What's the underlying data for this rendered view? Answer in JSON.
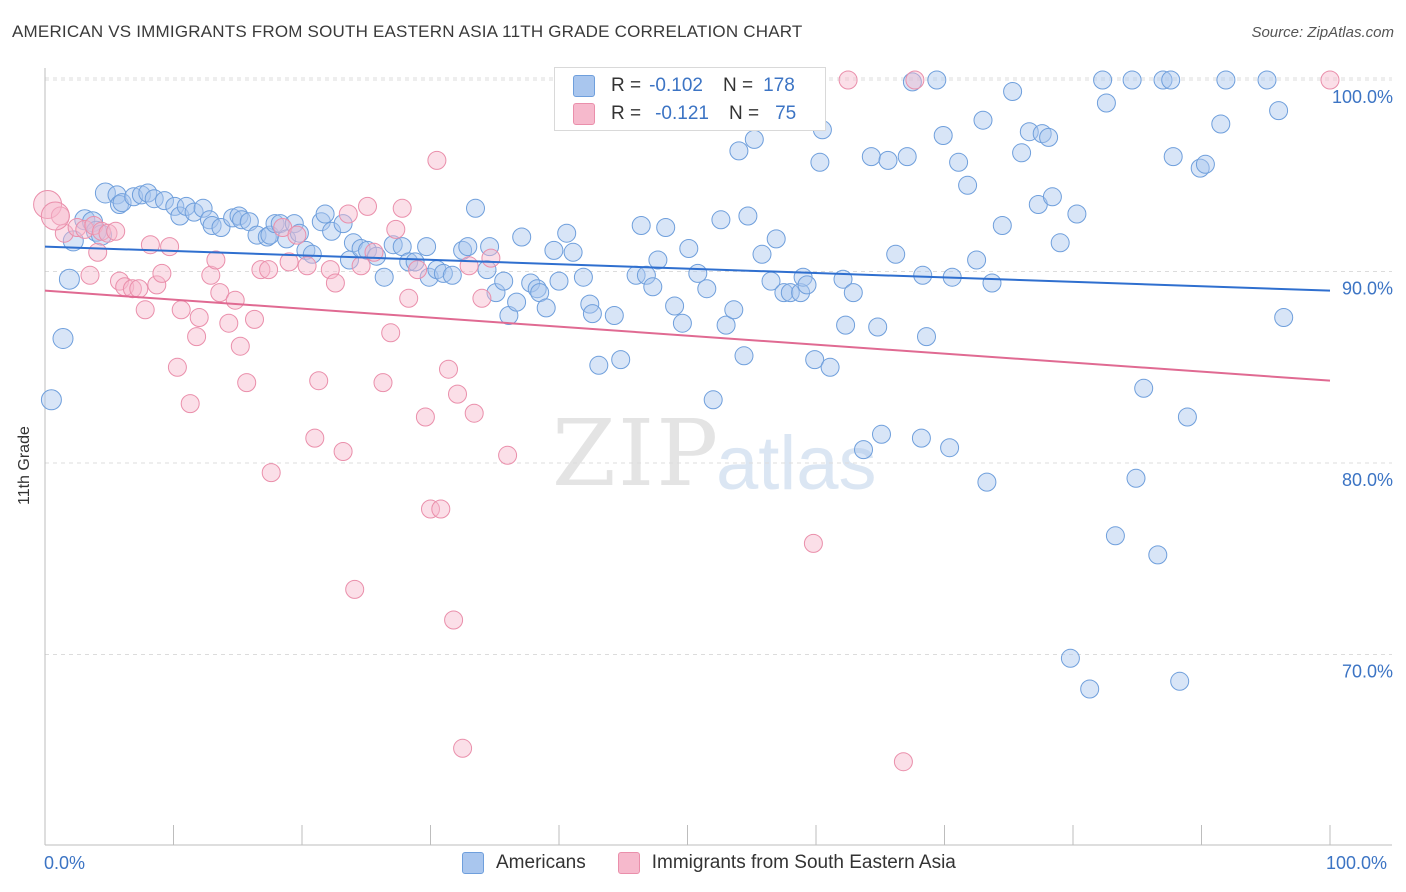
{
  "title": "AMERICAN VS IMMIGRANTS FROM SOUTH EASTERN ASIA 11TH GRADE CORRELATION CHART",
  "source": "Source: ZipAtlas.com",
  "watermark": {
    "zip": "ZIP",
    "atlas": "atlas"
  },
  "legend_top": {
    "rows": [
      {
        "r_label": "R =",
        "r_value": "-0.102",
        "n_label": "N =",
        "n_value": "178",
        "color": "#a9c6ee"
      },
      {
        "r_label": "R =",
        "r_value": "-0.121",
        "n_label": "N =",
        "n_value": "75",
        "color": "#f6b9cc"
      }
    ]
  },
  "chart_data": {
    "type": "scatter",
    "title": "AMERICAN VS IMMIGRANTS FROM SOUTH EASTERN ASIA 11TH GRADE CORRELATION CHART",
    "xlabel": "",
    "ylabel": "11th Grade",
    "xlim": [
      0,
      100
    ],
    "ylim": [
      60,
      100
    ],
    "x_tick_labels": {
      "left": "0.0%",
      "right": "100.0%"
    },
    "y_ticks": [
      {
        "value": 100,
        "label": "100.0%"
      },
      {
        "value": 90,
        "label": "90.0%"
      },
      {
        "value": 80,
        "label": "80.0%"
      },
      {
        "value": 70,
        "label": "70.0%"
      }
    ],
    "grid": true,
    "legend_position": "bottom",
    "series": [
      {
        "name": "Americans",
        "color": "#a9c6ee",
        "stroke": "#6f9fdc",
        "trend": {
          "x": [
            0,
            100
          ],
          "y": [
            91.3,
            89.0
          ],
          "color": "#2f6fcf"
        },
        "points": [
          [
            0.5,
            83.3
          ],
          [
            1.4,
            86.5
          ],
          [
            1.9,
            89.6
          ],
          [
            2.2,
            91.6
          ],
          [
            3.1,
            92.7
          ],
          [
            3.7,
            92.6
          ],
          [
            4.0,
            92.1
          ],
          [
            4.4,
            91.9
          ],
          [
            4.7,
            94.1
          ],
          [
            5.6,
            94.0
          ],
          [
            5.8,
            93.5
          ],
          [
            6.0,
            93.6
          ],
          [
            6.9,
            93.9
          ],
          [
            7.5,
            94.0
          ],
          [
            8.0,
            94.1
          ],
          [
            8.5,
            93.8
          ],
          [
            9.3,
            93.7
          ],
          [
            10.1,
            93.4
          ],
          [
            10.5,
            92.9
          ],
          [
            11.0,
            93.4
          ],
          [
            11.6,
            93.1
          ],
          [
            12.3,
            93.3
          ],
          [
            12.8,
            92.7
          ],
          [
            13.0,
            92.4
          ],
          [
            13.7,
            92.3
          ],
          [
            14.6,
            92.8
          ],
          [
            15.1,
            92.9
          ],
          [
            15.3,
            92.7
          ],
          [
            15.9,
            92.6
          ],
          [
            16.5,
            91.9
          ],
          [
            17.3,
            91.8
          ],
          [
            17.5,
            91.9
          ],
          [
            17.9,
            92.5
          ],
          [
            18.3,
            92.5
          ],
          [
            18.8,
            91.7
          ],
          [
            19.4,
            92.5
          ],
          [
            19.8,
            92.0
          ],
          [
            20.3,
            91.1
          ],
          [
            20.8,
            90.9
          ],
          [
            21.5,
            92.6
          ],
          [
            21.8,
            93.0
          ],
          [
            22.3,
            92.1
          ],
          [
            23.2,
            92.5
          ],
          [
            23.7,
            90.6
          ],
          [
            24.0,
            91.5
          ],
          [
            24.6,
            91.2
          ],
          [
            25.1,
            91.1
          ],
          [
            25.8,
            90.8
          ],
          [
            26.4,
            89.7
          ],
          [
            27.1,
            91.4
          ],
          [
            27.8,
            91.3
          ],
          [
            28.3,
            90.5
          ],
          [
            28.8,
            90.5
          ],
          [
            29.7,
            91.3
          ],
          [
            29.9,
            89.7
          ],
          [
            30.5,
            90.1
          ],
          [
            31.0,
            89.9
          ],
          [
            31.7,
            89.8
          ],
          [
            32.5,
            91.1
          ],
          [
            32.9,
            91.3
          ],
          [
            33.5,
            93.3
          ],
          [
            34.4,
            90.1
          ],
          [
            34.6,
            91.3
          ],
          [
            35.1,
            88.9
          ],
          [
            35.7,
            89.5
          ],
          [
            36.1,
            87.7
          ],
          [
            36.7,
            88.4
          ],
          [
            37.1,
            91.8
          ],
          [
            37.8,
            89.4
          ],
          [
            38.3,
            89.1
          ],
          [
            38.5,
            88.9
          ],
          [
            39.0,
            88.1
          ],
          [
            39.6,
            91.1
          ],
          [
            40.0,
            89.5
          ],
          [
            40.6,
            92.0
          ],
          [
            41.1,
            91.0
          ],
          [
            41.9,
            89.7
          ],
          [
            42.4,
            88.3
          ],
          [
            42.6,
            87.8
          ],
          [
            43.1,
            85.1
          ],
          [
            44.3,
            87.7
          ],
          [
            44.8,
            85.4
          ],
          [
            46.0,
            89.8
          ],
          [
            46.4,
            92.4
          ],
          [
            46.8,
            89.8
          ],
          [
            47.3,
            89.2
          ],
          [
            47.7,
            90.6
          ],
          [
            48.3,
            92.3
          ],
          [
            49.0,
            88.2
          ],
          [
            49.6,
            87.3
          ],
          [
            50.1,
            91.2
          ],
          [
            50.8,
            89.9
          ],
          [
            51.5,
            89.1
          ],
          [
            52.0,
            83.3
          ],
          [
            52.6,
            92.7
          ],
          [
            53.0,
            87.2
          ],
          [
            53.6,
            88.0
          ],
          [
            54.0,
            96.3
          ],
          [
            54.4,
            85.6
          ],
          [
            54.7,
            92.9
          ],
          [
            55.2,
            96.9
          ],
          [
            55.8,
            90.9
          ],
          [
            56.5,
            89.5
          ],
          [
            56.9,
            91.7
          ],
          [
            57.5,
            88.9
          ],
          [
            58.0,
            88.9
          ],
          [
            58.8,
            88.9
          ],
          [
            59.0,
            89.7
          ],
          [
            59.3,
            89.3
          ],
          [
            59.9,
            85.4
          ],
          [
            60.3,
            95.7
          ],
          [
            60.5,
            97.4
          ],
          [
            61.1,
            85.0
          ],
          [
            62.1,
            89.6
          ],
          [
            62.3,
            87.2
          ],
          [
            62.9,
            88.9
          ],
          [
            63.7,
            80.7
          ],
          [
            64.3,
            96.0
          ],
          [
            64.8,
            87.1
          ],
          [
            65.1,
            81.5
          ],
          [
            65.6,
            95.8
          ],
          [
            66.2,
            90.9
          ],
          [
            67.1,
            96.0
          ],
          [
            67.5,
            99.9
          ],
          [
            68.2,
            81.3
          ],
          [
            68.3,
            89.8
          ],
          [
            68.6,
            86.6
          ],
          [
            69.4,
            100.0
          ],
          [
            69.9,
            97.1
          ],
          [
            70.4,
            80.8
          ],
          [
            70.6,
            89.7
          ],
          [
            71.1,
            95.7
          ],
          [
            71.8,
            94.5
          ],
          [
            72.5,
            90.6
          ],
          [
            73.0,
            97.9
          ],
          [
            73.3,
            79.0
          ],
          [
            73.7,
            89.4
          ],
          [
            74.5,
            92.4
          ],
          [
            75.3,
            99.4
          ],
          [
            76.0,
            96.2
          ],
          [
            76.6,
            97.3
          ],
          [
            77.3,
            93.5
          ],
          [
            77.6,
            97.2
          ],
          [
            78.1,
            97.0
          ],
          [
            78.4,
            93.9
          ],
          [
            79.0,
            91.5
          ],
          [
            79.8,
            69.8
          ],
          [
            80.3,
            93.0
          ],
          [
            81.3,
            68.2
          ],
          [
            82.3,
            100.0
          ],
          [
            82.6,
            98.8
          ],
          [
            83.3,
            76.2
          ],
          [
            84.6,
            100.0
          ],
          [
            84.9,
            79.2
          ],
          [
            85.5,
            83.9
          ],
          [
            86.6,
            75.2
          ],
          [
            87.0,
            100.0
          ],
          [
            87.6,
            100.0
          ],
          [
            87.8,
            96.0
          ],
          [
            88.3,
            68.6
          ],
          [
            88.9,
            82.4
          ],
          [
            89.9,
            95.4
          ],
          [
            90.3,
            95.6
          ],
          [
            91.5,
            97.7
          ],
          [
            91.9,
            100.0
          ],
          [
            95.1,
            100.0
          ],
          [
            96.0,
            98.4
          ],
          [
            96.4,
            87.6
          ]
        ]
      },
      {
        "name": "Immigrants from South Eastern Asia",
        "color": "#f6b9cc",
        "stroke": "#ea8fab",
        "trend": {
          "x": [
            0,
            100
          ],
          "y": [
            89.0,
            84.3
          ],
          "color": "#e06a92"
        },
        "points": [
          [
            0.2,
            93.5
          ],
          [
            1.2,
            92.9
          ],
          [
            1.5,
            92.0
          ],
          [
            2.5,
            92.3
          ],
          [
            3.1,
            92.2
          ],
          [
            3.5,
            89.8
          ],
          [
            3.8,
            92.4
          ],
          [
            4.1,
            91.0
          ],
          [
            4.4,
            92.1
          ],
          [
            4.9,
            92.0
          ],
          [
            5.5,
            92.1
          ],
          [
            5.8,
            89.5
          ],
          [
            6.2,
            89.2
          ],
          [
            6.8,
            89.1
          ],
          [
            7.3,
            89.1
          ],
          [
            7.8,
            88.0
          ],
          [
            8.2,
            91.4
          ],
          [
            8.7,
            89.3
          ],
          [
            9.1,
            89.9
          ],
          [
            9.7,
            91.3
          ],
          [
            10.3,
            85.0
          ],
          [
            10.6,
            88.0
          ],
          [
            11.3,
            83.1
          ],
          [
            11.8,
            86.6
          ],
          [
            12.0,
            87.6
          ],
          [
            12.9,
            89.8
          ],
          [
            13.3,
            90.6
          ],
          [
            13.6,
            88.9
          ],
          [
            14.3,
            87.3
          ],
          [
            14.8,
            88.5
          ],
          [
            15.2,
            86.1
          ],
          [
            15.7,
            84.2
          ],
          [
            16.3,
            87.5
          ],
          [
            16.8,
            90.1
          ],
          [
            17.4,
            90.1
          ],
          [
            17.6,
            79.5
          ],
          [
            18.5,
            92.3
          ],
          [
            19.0,
            90.5
          ],
          [
            19.6,
            91.9
          ],
          [
            20.4,
            90.3
          ],
          [
            21.0,
            81.3
          ],
          [
            21.3,
            84.3
          ],
          [
            22.2,
            90.1
          ],
          [
            22.6,
            89.4
          ],
          [
            23.2,
            80.6
          ],
          [
            23.6,
            93.0
          ],
          [
            24.1,
            73.4
          ],
          [
            24.6,
            90.3
          ],
          [
            25.1,
            93.4
          ],
          [
            25.6,
            91.0
          ],
          [
            26.3,
            84.2
          ],
          [
            26.9,
            86.8
          ],
          [
            27.3,
            92.2
          ],
          [
            27.8,
            93.3
          ],
          [
            28.3,
            88.6
          ],
          [
            29.0,
            90.1
          ],
          [
            29.6,
            82.4
          ],
          [
            30.0,
            77.6
          ],
          [
            30.5,
            95.8
          ],
          [
            30.8,
            77.6
          ],
          [
            31.4,
            84.9
          ],
          [
            31.8,
            71.8
          ],
          [
            32.1,
            83.6
          ],
          [
            32.5,
            65.1
          ],
          [
            33.0,
            90.3
          ],
          [
            33.4,
            82.6
          ],
          [
            34.0,
            88.6
          ],
          [
            34.7,
            90.7
          ],
          [
            36.0,
            80.4
          ],
          [
            59.8,
            75.8
          ],
          [
            62.5,
            100.0
          ],
          [
            66.8,
            64.4
          ],
          [
            67.7,
            100.0
          ],
          [
            100.0,
            100.0
          ],
          [
            0.8,
            92.9
          ]
        ]
      }
    ]
  },
  "x_axis": {
    "left_label": "0.0%",
    "right_label": "100.0%"
  },
  "bottom_legend": [
    {
      "label": "Americans",
      "color": "#a9c6ee"
    },
    {
      "label": "Immigrants from South Eastern Asia",
      "color": "#f6b9cc"
    }
  ]
}
